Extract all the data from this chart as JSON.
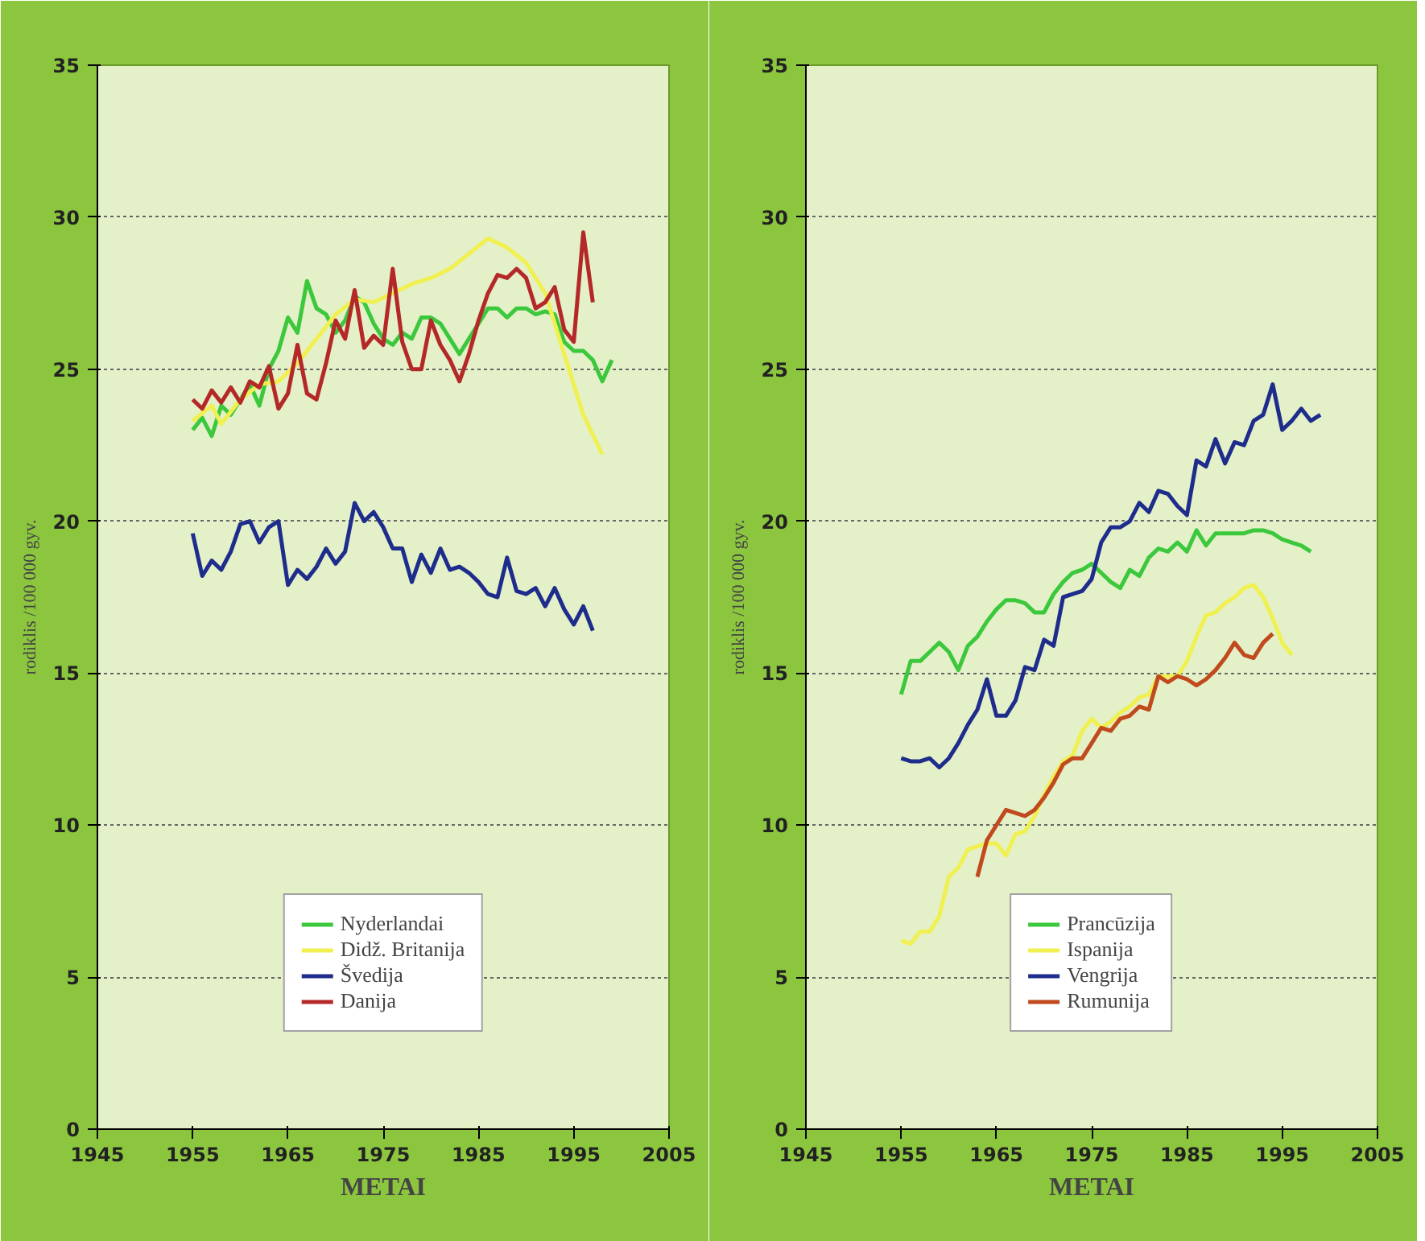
{
  "chart_data": [
    {
      "type": "line",
      "xlabel": "METAI",
      "ylabel": "rodiklis /100 000 gyv.",
      "xlim": [
        1945,
        2005
      ],
      "xticks": [
        1945,
        1955,
        1965,
        1975,
        1985,
        1995,
        2005
      ],
      "ylim": [
        0,
        35
      ],
      "yticks": [
        0,
        5,
        10,
        15,
        20,
        25,
        30,
        35
      ],
      "grid": "y",
      "legend": "bottom",
      "line_style": "solid",
      "series": [
        {
          "name": "Nyderlandai",
          "color": "#3cc83c",
          "x": [
            1955,
            1956,
            1957,
            1958,
            1959,
            1960,
            1961,
            1962,
            1963,
            1964,
            1965,
            1966,
            1967,
            1968,
            1969,
            1970,
            1971,
            1972,
            1973,
            1974,
            1975,
            1976,
            1977,
            1978,
            1979,
            1980,
            1981,
            1982,
            1983,
            1984,
            1985,
            1986,
            1987,
            1988,
            1989,
            1990,
            1991,
            1992,
            1993,
            1994,
            1995,
            1996,
            1997,
            1998,
            1999
          ],
          "values": [
            23.0,
            23.4,
            22.8,
            23.8,
            23.5,
            24.0,
            24.5,
            23.8,
            25.0,
            25.6,
            26.7,
            26.2,
            27.9,
            27.0,
            26.8,
            26.2,
            26.6,
            27.4,
            27.2,
            26.5,
            26.0,
            25.8,
            26.2,
            26.0,
            26.7,
            26.7,
            26.5,
            26.0,
            25.5,
            26.0,
            26.5,
            27.0,
            27.0,
            26.7,
            27.0,
            27.0,
            26.8,
            26.9,
            26.8,
            25.9,
            25.6,
            25.6,
            25.3,
            24.6,
            25.3
          ]
        },
        {
          "name": "Didž. Britanija",
          "color": "#f0f050",
          "x": [
            1955,
            1957,
            1958,
            1960,
            1962,
            1964,
            1966,
            1968,
            1970,
            1972,
            1974,
            1976,
            1978,
            1980,
            1982,
            1984,
            1986,
            1988,
            1990,
            1992,
            1994,
            1996,
            1998
          ],
          "values": [
            23.3,
            23.8,
            23.2,
            24.0,
            24.5,
            24.6,
            25.2,
            26.0,
            26.8,
            27.3,
            27.2,
            27.5,
            27.8,
            28.0,
            28.3,
            28.8,
            29.3,
            29.0,
            28.5,
            27.5,
            25.5,
            23.5,
            22.2
          ]
        },
        {
          "name": "Švedija",
          "color": "#1e2d8c",
          "x": [
            1955,
            1956,
            1957,
            1958,
            1959,
            1960,
            1961,
            1962,
            1963,
            1964,
            1965,
            1966,
            1967,
            1968,
            1969,
            1970,
            1971,
            1972,
            1973,
            1974,
            1975,
            1976,
            1977,
            1978,
            1979,
            1980,
            1981,
            1982,
            1983,
            1984,
            1985,
            1986,
            1987,
            1988,
            1989,
            1990,
            1991,
            1992,
            1993,
            1994,
            1995,
            1996,
            1997
          ],
          "values": [
            19.6,
            18.2,
            18.7,
            18.4,
            19.0,
            19.9,
            20.0,
            19.3,
            19.8,
            20.0,
            17.9,
            18.4,
            18.1,
            18.5,
            19.1,
            18.6,
            19.0,
            20.6,
            20.0,
            20.3,
            19.8,
            19.1,
            19.1,
            18.0,
            18.9,
            18.3,
            19.1,
            18.4,
            18.5,
            18.3,
            18.0,
            17.6,
            17.5,
            18.8,
            17.7,
            17.6,
            17.8,
            17.2,
            17.8,
            17.1,
            16.6,
            17.2,
            16.4
          ]
        },
        {
          "name": "Danija",
          "color": "#b42828",
          "x": [
            1955,
            1956,
            1957,
            1958,
            1959,
            1960,
            1961,
            1962,
            1963,
            1964,
            1965,
            1966,
            1967,
            1968,
            1969,
            1970,
            1971,
            1972,
            1973,
            1974,
            1975,
            1976,
            1977,
            1978,
            1979,
            1980,
            1981,
            1982,
            1983,
            1984,
            1985,
            1986,
            1987,
            1988,
            1989,
            1990,
            1991,
            1992,
            1993,
            1994,
            1995,
            1996,
            1997
          ],
          "values": [
            24.0,
            23.7,
            24.3,
            23.9,
            24.4,
            23.9,
            24.6,
            24.4,
            25.1,
            23.7,
            24.2,
            25.8,
            24.2,
            24.0,
            25.2,
            26.6,
            26.0,
            27.6,
            25.7,
            26.1,
            25.8,
            28.3,
            25.9,
            25.0,
            25.0,
            26.6,
            25.8,
            25.3,
            24.6,
            25.5,
            26.6,
            27.5,
            28.1,
            28.0,
            28.3,
            28.0,
            27.0,
            27.2,
            27.7,
            26.3,
            25.9,
            29.5,
            27.2
          ]
        }
      ]
    },
    {
      "type": "line",
      "xlabel": "METAI",
      "ylabel": "rodiklis /100 000 gyv.",
      "xlim": [
        1945,
        2005
      ],
      "xticks": [
        1945,
        1955,
        1965,
        1975,
        1985,
        1995,
        2005
      ],
      "ylim": [
        0,
        35
      ],
      "yticks": [
        0,
        5,
        10,
        15,
        20,
        25,
        30,
        35
      ],
      "grid": "y",
      "legend": "bottom",
      "line_style": "solid",
      "series": [
        {
          "name": "Prancūzija",
          "color": "#3cc83c",
          "x": [
            1955,
            1956,
            1957,
            1958,
            1959,
            1960,
            1961,
            1962,
            1963,
            1964,
            1965,
            1966,
            1967,
            1968,
            1969,
            1970,
            1971,
            1972,
            1973,
            1974,
            1975,
            1976,
            1977,
            1978,
            1979,
            1980,
            1981,
            1982,
            1983,
            1984,
            1985,
            1986,
            1987,
            1988,
            1989,
            1990,
            1991,
            1992,
            1993,
            1994,
            1995,
            1996,
            1997,
            1998
          ],
          "values": [
            14.3,
            15.4,
            15.4,
            15.7,
            16.0,
            15.7,
            15.1,
            15.9,
            16.2,
            16.7,
            17.1,
            17.4,
            17.4,
            17.3,
            17.0,
            17.0,
            17.6,
            18.0,
            18.3,
            18.4,
            18.6,
            18.3,
            18.0,
            17.8,
            18.4,
            18.2,
            18.8,
            19.1,
            19.0,
            19.3,
            19.0,
            19.7,
            19.2,
            19.6,
            19.6,
            19.6,
            19.6,
            19.7,
            19.7,
            19.6,
            19.4,
            19.3,
            19.2,
            19.0
          ]
        },
        {
          "name": "Ispanija",
          "color": "#f0f050",
          "x": [
            1955,
            1956,
            1957,
            1958,
            1959,
            1960,
            1961,
            1962,
            1963,
            1964,
            1965,
            1966,
            1967,
            1968,
            1969,
            1970,
            1971,
            1972,
            1973,
            1974,
            1975,
            1976,
            1977,
            1978,
            1979,
            1980,
            1981,
            1982,
            1983,
            1984,
            1985,
            1986,
            1987,
            1988,
            1989,
            1990,
            1991,
            1992,
            1993,
            1994,
            1995,
            1996
          ],
          "values": [
            6.2,
            6.1,
            6.5,
            6.5,
            7.0,
            8.3,
            8.6,
            9.2,
            9.3,
            9.4,
            9.4,
            9.0,
            9.7,
            9.8,
            10.3,
            11.0,
            11.6,
            12.1,
            12.3,
            13.1,
            13.5,
            13.2,
            13.4,
            13.7,
            13.9,
            14.2,
            14.3,
            14.9,
            14.9,
            14.9,
            15.4,
            16.2,
            16.9,
            17.0,
            17.3,
            17.5,
            17.8,
            17.9,
            17.5,
            16.8,
            16.0,
            15.6
          ]
        },
        {
          "name": "Vengrija",
          "color": "#1e2d8c",
          "x": [
            1955,
            1956,
            1957,
            1958,
            1959,
            1960,
            1961,
            1962,
            1963,
            1964,
            1965,
            1966,
            1967,
            1968,
            1969,
            1970,
            1971,
            1972,
            1973,
            1974,
            1975,
            1976,
            1977,
            1978,
            1979,
            1980,
            1981,
            1982,
            1983,
            1984,
            1985,
            1986,
            1987,
            1988,
            1989,
            1990,
            1991,
            1992,
            1993,
            1994,
            1995,
            1996,
            1997,
            1998,
            1999
          ],
          "values": [
            12.2,
            12.1,
            12.1,
            12.2,
            11.9,
            12.2,
            12.7,
            13.3,
            13.8,
            14.8,
            13.6,
            13.6,
            14.1,
            15.2,
            15.1,
            16.1,
            15.9,
            17.5,
            17.6,
            17.7,
            18.1,
            19.3,
            19.8,
            19.8,
            20.0,
            20.6,
            20.3,
            21.0,
            20.9,
            20.5,
            20.2,
            22.0,
            21.8,
            22.7,
            21.9,
            22.6,
            22.5,
            23.3,
            23.5,
            24.5,
            23.0,
            23.3,
            23.7,
            23.3,
            23.5
          ]
        },
        {
          "name": "Rumunija",
          "color": "#c04a1e",
          "x": [
            1963,
            1964,
            1965,
            1966,
            1967,
            1968,
            1969,
            1970,
            1971,
            1972,
            1973,
            1974,
            1975,
            1976,
            1977,
            1978,
            1979,
            1980,
            1981,
            1982,
            1983,
            1984,
            1985,
            1986,
            1987,
            1988,
            1989,
            1990,
            1991,
            1992,
            1993,
            1994
          ],
          "values": [
            8.3,
            9.5,
            10.0,
            10.5,
            10.4,
            10.3,
            10.5,
            10.9,
            11.4,
            12.0,
            12.2,
            12.2,
            12.7,
            13.2,
            13.1,
            13.5,
            13.6,
            13.9,
            13.8,
            14.9,
            14.7,
            14.9,
            14.8,
            14.6,
            14.8,
            15.1,
            15.5,
            16.0,
            15.6,
            15.5,
            16.0,
            16.3
          ]
        }
      ]
    }
  ]
}
